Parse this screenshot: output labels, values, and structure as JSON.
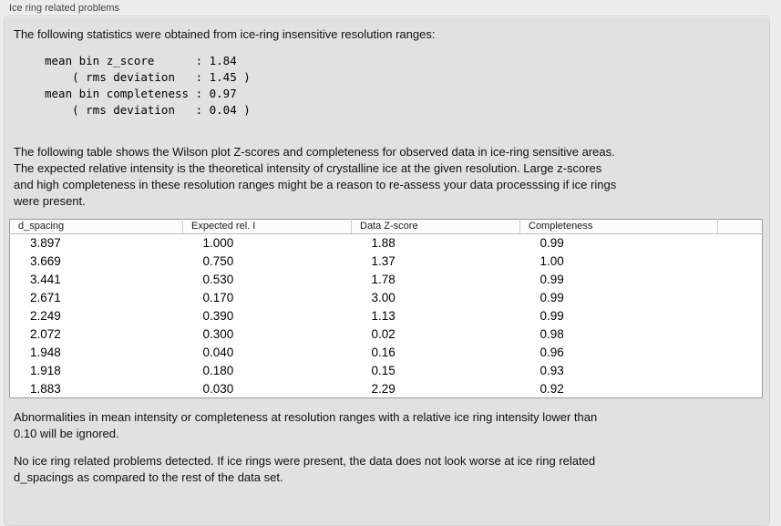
{
  "groupbox": {
    "title": "Ice ring related problems"
  },
  "intro": {
    "text": "The following statistics were obtained from ice-ring insensitive resolution ranges:"
  },
  "stats_block": {
    "text": "mean bin z_score      : 1.84\n    ( rms deviation   : 1.45 )\nmean bin completeness : 0.97\n    ( rms deviation   : 0.04 )",
    "values": {
      "mean_bin_z_score": 1.84,
      "z_score_rms_deviation": 1.45,
      "mean_bin_completeness": 0.97,
      "completeness_rms_deviation": 0.04
    }
  },
  "description": {
    "text": "The following table shows the Wilson plot Z-scores and completeness for observed data in ice-ring sensitive areas.\nThe expected relative intensity is the theoretical intensity of crystalline ice at the given resolution. Large z-scores\nand high completeness in these resolution ranges might be a reason to re-assess your data processsing if ice rings\nwere present."
  },
  "table": {
    "headers": [
      "d_spacing",
      "Expected rel. I",
      "Data Z-score",
      "Completeness",
      ""
    ],
    "rows": [
      [
        "3.897",
        "1.000",
        "1.88",
        "0.99"
      ],
      [
        "3.669",
        "0.750",
        "1.37",
        "1.00"
      ],
      [
        "3.441",
        "0.530",
        "1.78",
        "0.99"
      ],
      [
        "2.671",
        "0.170",
        "3.00",
        "0.99"
      ],
      [
        "2.249",
        "0.390",
        "1.13",
        "0.99"
      ],
      [
        "2.072",
        "0.300",
        "0.02",
        "0.98"
      ],
      [
        "1.948",
        "0.040",
        "0.16",
        "0.96"
      ],
      [
        "1.918",
        "0.180",
        "0.15",
        "0.93"
      ],
      [
        "1.883",
        "0.030",
        "2.29",
        "0.92"
      ]
    ]
  },
  "notes": {
    "ignore_note": "Abnormalities in mean intensity or completeness at resolution ranges with a relative ice ring intensity lower than\n0.10 will be ignored.",
    "conclusion": "No ice ring related problems detected. If ice rings were present, the data does not look worse at ice ring related\nd_spacings as compared to the rest of the data set."
  },
  "colors": {
    "page_background": "#ececec",
    "groupbox_background": "#e1e1e1",
    "groupbox_border": "#d2d2d2",
    "table_background": "#ffffff",
    "table_border": "#9b9b9b",
    "text": "#111111"
  }
}
